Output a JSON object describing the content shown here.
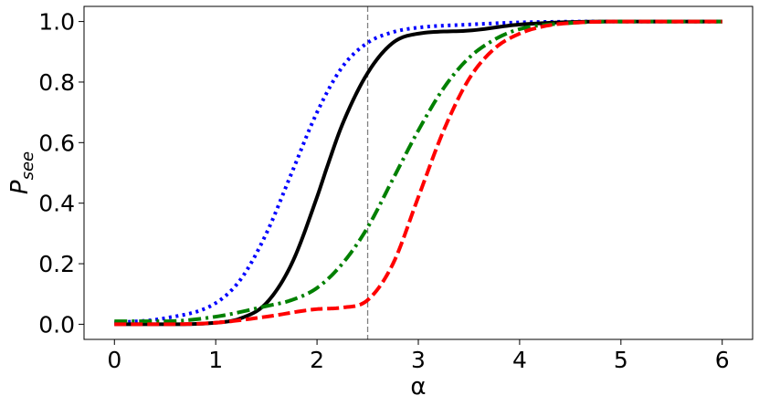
{
  "chart_data": {
    "type": "line",
    "xlabel": "α",
    "ylabel": {
      "main": "P",
      "sub": "see"
    },
    "xlim": [
      -0.3,
      6.3
    ],
    "ylim": [
      -0.05,
      1.05
    ],
    "x_ticks": [
      0,
      1,
      2,
      3,
      4,
      5,
      6
    ],
    "y_ticks": [
      0.0,
      0.2,
      0.4,
      0.6,
      0.8,
      1.0
    ],
    "y_tick_labels": [
      "0.0",
      "0.2",
      "0.4",
      "0.6",
      "0.8",
      "1.0"
    ],
    "grid": false,
    "vertical_reference_line": {
      "x": 2.5,
      "color": "#808080",
      "style": "dashed"
    },
    "series": [
      {
        "color": "#0000ff",
        "style": "dotted",
        "x": [
          0,
          0.5,
          1.0,
          1.25,
          1.5,
          1.75,
          2.0,
          2.25,
          2.5,
          2.75,
          3.0,
          3.5,
          4.0,
          5.0,
          6.0
        ],
        "y": [
          0.005,
          0.02,
          0.07,
          0.15,
          0.3,
          0.5,
          0.7,
          0.85,
          0.93,
          0.965,
          0.98,
          0.99,
          0.997,
          1.0,
          1.0
        ]
      },
      {
        "color": "#000000",
        "style": "solid",
        "x": [
          0,
          0.5,
          1.0,
          1.25,
          1.5,
          1.75,
          2.0,
          2.1,
          2.25,
          2.5,
          2.75,
          3.0,
          3.5,
          4.0,
          5.0,
          6.0
        ],
        "y": [
          0.0,
          0.0,
          0.005,
          0.02,
          0.07,
          0.2,
          0.42,
          0.52,
          0.66,
          0.83,
          0.93,
          0.96,
          0.97,
          0.99,
          1.0,
          1.0
        ]
      },
      {
        "color": "#008000",
        "style": "dashdot",
        "x": [
          0,
          0.5,
          1.0,
          1.5,
          1.75,
          2.0,
          2.25,
          2.5,
          2.75,
          3.0,
          3.25,
          3.5,
          3.75,
          4.0,
          4.5,
          5.0,
          6.0
        ],
        "y": [
          0.01,
          0.01,
          0.025,
          0.06,
          0.08,
          0.12,
          0.2,
          0.32,
          0.48,
          0.64,
          0.78,
          0.88,
          0.94,
          0.975,
          0.995,
          1.0,
          1.0
        ]
      },
      {
        "color": "#ff0000",
        "style": "dashed",
        "x": [
          0,
          0.5,
          1.0,
          1.5,
          2.0,
          2.25,
          2.5,
          2.75,
          3.0,
          3.25,
          3.5,
          3.75,
          4.0,
          4.25,
          4.5,
          5.0,
          6.0
        ],
        "y": [
          0.0,
          0.0,
          0.005,
          0.025,
          0.05,
          0.055,
          0.08,
          0.2,
          0.42,
          0.64,
          0.81,
          0.91,
          0.96,
          0.985,
          0.995,
          1.0,
          1.0
        ]
      }
    ]
  }
}
